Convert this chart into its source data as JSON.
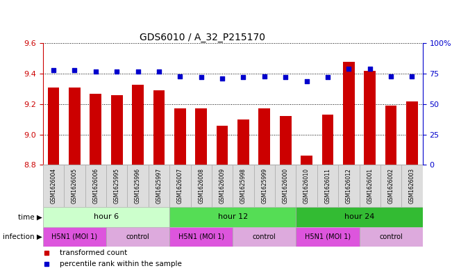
{
  "title": "GDS6010 / A_32_P215170",
  "samples": [
    "GSM1626004",
    "GSM1626005",
    "GSM1626006",
    "GSM1625995",
    "GSM1625996",
    "GSM1625997",
    "GSM1626007",
    "GSM1626008",
    "GSM1626009",
    "GSM1625998",
    "GSM1625999",
    "GSM1626000",
    "GSM1626010",
    "GSM1626011",
    "GSM1626012",
    "GSM1626001",
    "GSM1626002",
    "GSM1626003"
  ],
  "bar_values": [
    9.31,
    9.31,
    9.27,
    9.26,
    9.33,
    9.29,
    9.17,
    9.17,
    9.06,
    9.1,
    9.17,
    9.12,
    8.86,
    9.13,
    9.48,
    9.42,
    9.19,
    9.22
  ],
  "percentile_values": [
    78,
    78,
    77,
    77,
    77,
    77,
    73,
    72,
    71,
    72,
    73,
    72,
    69,
    72,
    79,
    79,
    73,
    73
  ],
  "ylim_left": [
    8.8,
    9.6
  ],
  "ylim_right": [
    0,
    100
  ],
  "yticks_left": [
    8.8,
    9.0,
    9.2,
    9.4,
    9.6
  ],
  "yticks_right": [
    0,
    25,
    50,
    75,
    100
  ],
  "bar_color": "#cc0000",
  "dot_color": "#0000cc",
  "grid_color": "#000000",
  "time_groups": [
    {
      "label": "hour 6",
      "start": 0,
      "end": 6,
      "color": "#ccffcc"
    },
    {
      "label": "hour 12",
      "start": 6,
      "end": 12,
      "color": "#55dd55"
    },
    {
      "label": "hour 24",
      "start": 12,
      "end": 18,
      "color": "#33bb33"
    }
  ],
  "infection_groups": [
    {
      "label": "H5N1 (MOI 1)",
      "start": 0,
      "end": 3,
      "color": "#dd55dd"
    },
    {
      "label": "control",
      "start": 3,
      "end": 6,
      "color": "#ddaadd"
    },
    {
      "label": "H5N1 (MOI 1)",
      "start": 6,
      "end": 9,
      "color": "#dd55dd"
    },
    {
      "label": "control",
      "start": 9,
      "end": 12,
      "color": "#ddaadd"
    },
    {
      "label": "H5N1 (MOI 1)",
      "start": 12,
      "end": 15,
      "color": "#dd55dd"
    },
    {
      "label": "control",
      "start": 15,
      "end": 18,
      "color": "#ddaadd"
    }
  ],
  "legend_items": [
    {
      "label": "transformed count",
      "color": "#cc0000"
    },
    {
      "label": "percentile rank within the sample",
      "color": "#0000cc"
    }
  ],
  "tick_label_color": "#cc0000",
  "right_axis_color": "#0000cc",
  "bar_width": 0.55,
  "sample_cell_color": "#dddddd",
  "sample_cell_edge": "#aaaaaa",
  "spine_color": "#888888"
}
